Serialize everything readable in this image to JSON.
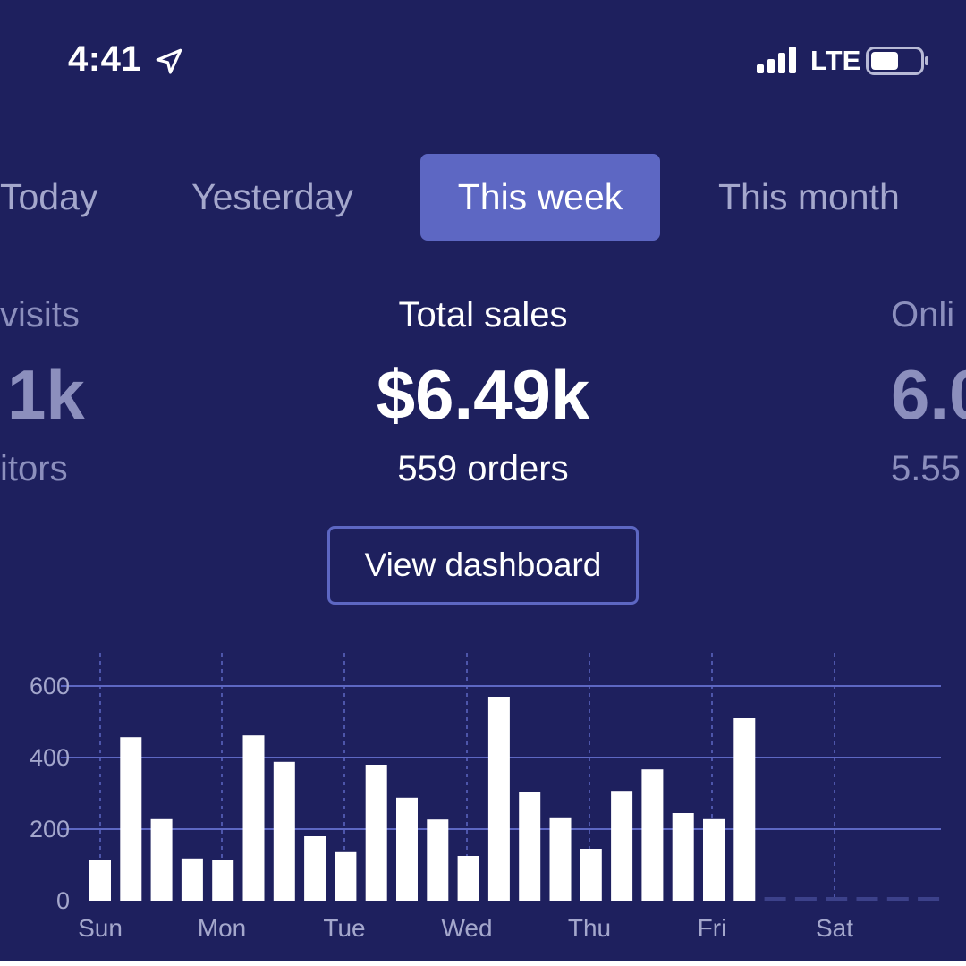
{
  "status_bar": {
    "time": "4:41",
    "network": "LTE"
  },
  "tabs": [
    {
      "label": "Today",
      "active": false
    },
    {
      "label": "Yesterday",
      "active": false
    },
    {
      "label": "This week",
      "active": true
    },
    {
      "label": "This month",
      "active": false
    }
  ],
  "stats": {
    "left": {
      "label": "visits",
      "value": "1k",
      "sub": "itors"
    },
    "center": {
      "label": "Total sales",
      "value": "$6.49k",
      "sub": "559 orders"
    },
    "right": {
      "label": "Onli",
      "value": "6.0",
      "sub": "5.55"
    }
  },
  "actions": {
    "view_dashboard": "View dashboard"
  },
  "colors": {
    "background": "#1e205e",
    "accent": "#5d67c3",
    "bar": "#ffffff",
    "muted_text": "#8c8fbd"
  },
  "chart_data": {
    "type": "bar",
    "x_ticks": [
      "Sun",
      "Mon",
      "Tue",
      "Wed",
      "Thu",
      "Fri",
      "Sat"
    ],
    "y_ticks": [
      0,
      200,
      400,
      600
    ],
    "ylim": [
      0,
      650
    ],
    "grid": true,
    "values": [
      115,
      457,
      228,
      118,
      115,
      462,
      388,
      180,
      138,
      380,
      288,
      227,
      125,
      570,
      305,
      233,
      145,
      307,
      367,
      245,
      228,
      510
    ],
    "placeholder_bars": 6
  }
}
